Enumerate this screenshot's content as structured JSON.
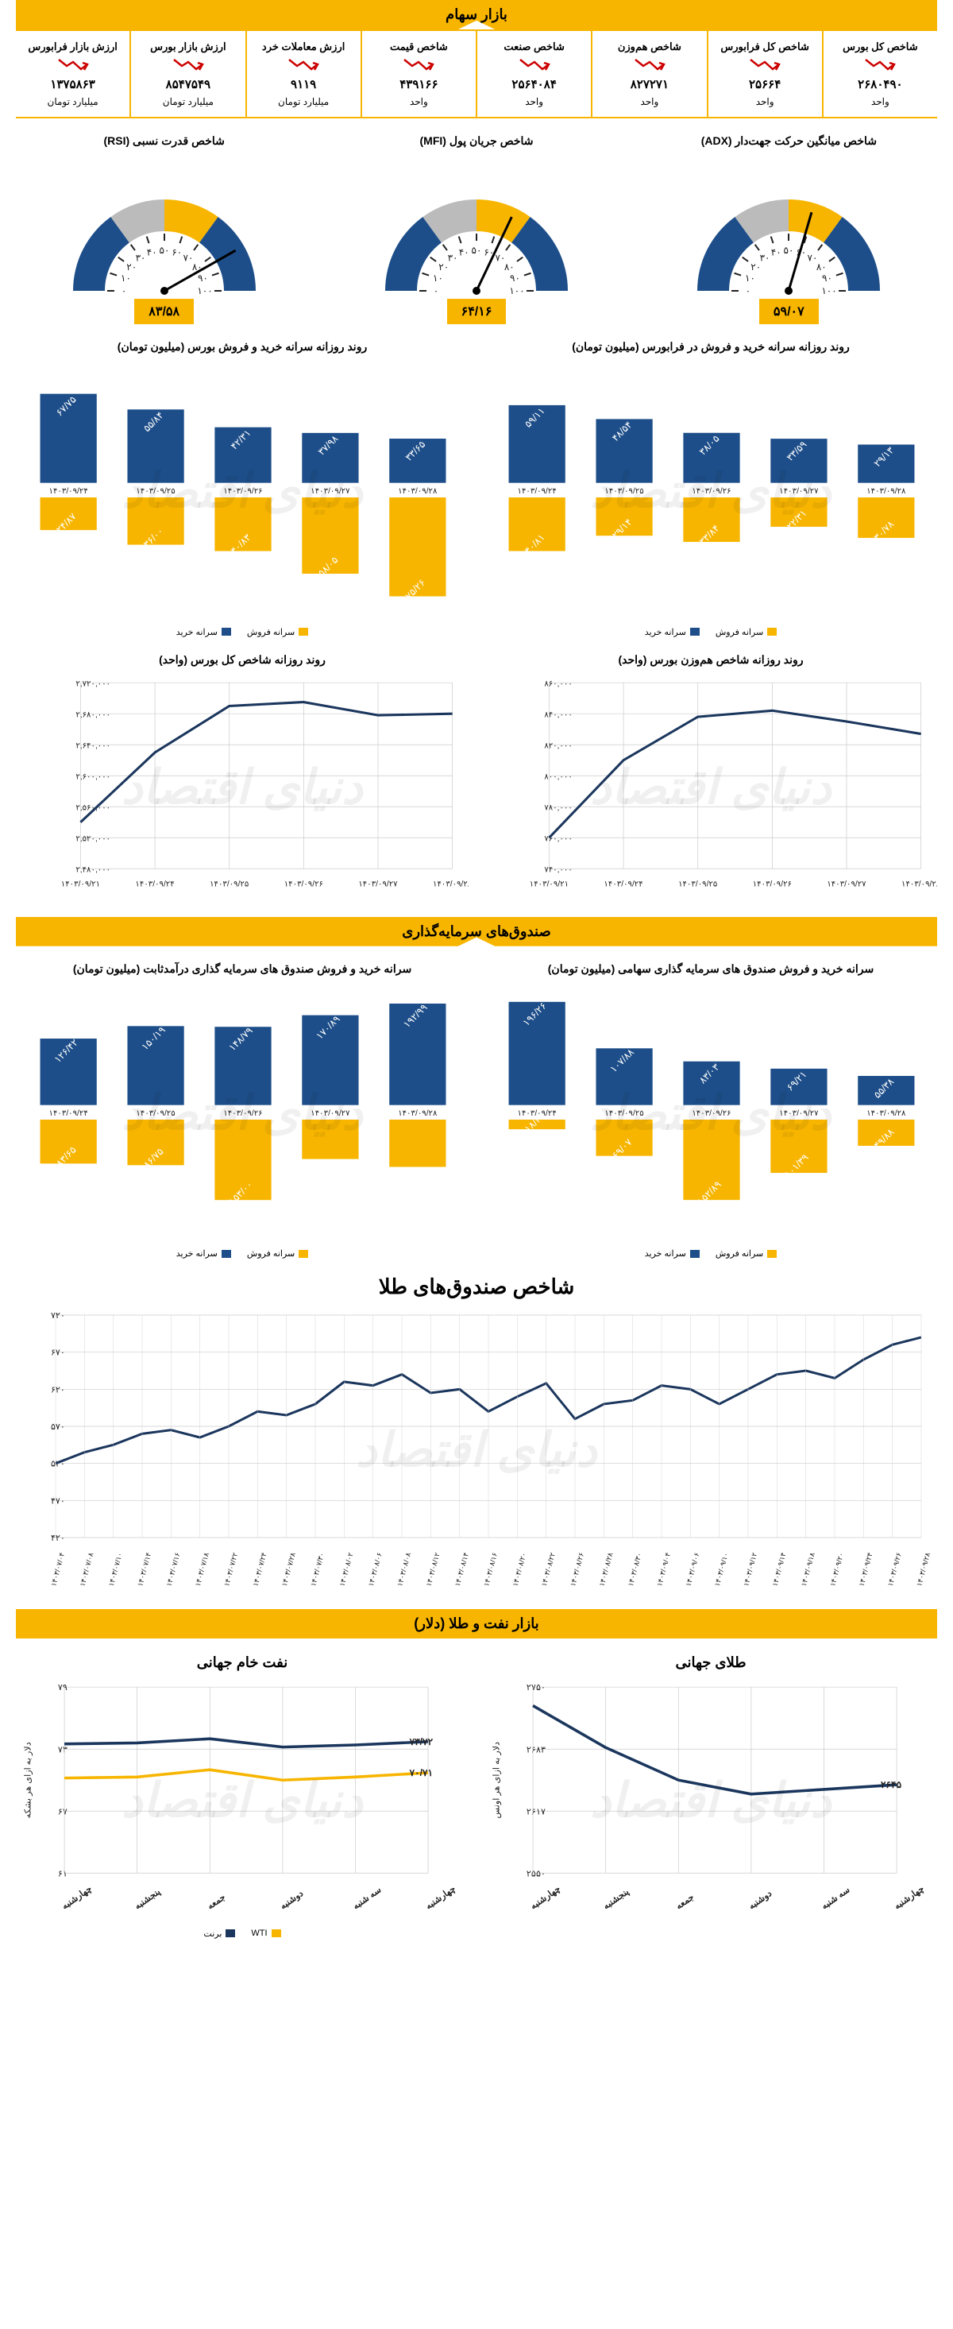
{
  "colors": {
    "yellow": "#f7b500",
    "blue": "#1d4e89",
    "navy": "#1b365d",
    "grid": "#cccccc",
    "text": "#222222"
  },
  "watermark": "دنیای اقتصاد",
  "section1": {
    "title": "بازار سهام",
    "metrics": [
      {
        "title": "شاخص کل بورس",
        "value": "۲۶۸۰۴۹۰",
        "unit": "واحد",
        "trend": "down"
      },
      {
        "title": "شاخص کل فرابورس",
        "value": "۲۵۶۶۴",
        "unit": "واحد",
        "trend": "down"
      },
      {
        "title": "شاخص هم‌وزن",
        "value": "۸۲۷۲۷۱",
        "unit": "واحد",
        "trend": "down"
      },
      {
        "title": "شاخص صنعت",
        "value": "۲۵۶۴۰۸۴",
        "unit": "واحد",
        "trend": "down"
      },
      {
        "title": "شاخص قیمت",
        "value": "۴۳۹۱۶۶",
        "unit": "واحد",
        "trend": "down"
      },
      {
        "title": "ارزش معاملات خرد",
        "value": "۹۱۱۹",
        "unit": "میلیارد تومان",
        "trend": "down"
      },
      {
        "title": "ارزش بازار بورس",
        "value": "۸۵۴۷۵۴۹",
        "unit": "میلیارد تومان",
        "trend": "down"
      },
      {
        "title": "ارزش بازار فرابورس",
        "value": "۱۳۷۵۸۶۳",
        "unit": "میلیارد تومان",
        "trend": "down"
      }
    ]
  },
  "gauges": [
    {
      "title": "شاخص میانگین حرکت جهت‌دار (ADX)",
      "value": 59.07,
      "label": "۵۹/۰۷"
    },
    {
      "title": "شاخص جریان پول (MFI)",
      "value": 64.16,
      "label": "۶۴/۱۶"
    },
    {
      "title": "شاخص قدرت نسبی (RSI)",
      "value": 83.58,
      "label": "۸۳/۵۸"
    }
  ],
  "gauge_ticks": [
    "۰",
    "۱۰",
    "۲۰",
    "۳۰",
    "۴۰",
    "۵۰",
    "۶۰",
    "۷۰",
    "۸۰",
    "۹۰",
    "۱۰۰"
  ],
  "bar_charts_row1": [
    {
      "title": "روند روزانه سرانه خرید و فروش در فرابورس (میلیون تومان)",
      "dates": [
        "۱۴۰۳/۰۹/۲۴",
        "۱۴۰۳/۰۹/۲۵",
        "۱۴۰۳/۰۹/۲۶",
        "۱۴۰۳/۰۹/۲۷",
        "۱۴۰۳/۰۹/۲۸"
      ],
      "buy": [
        59.11,
        48.54,
        38.05,
        33.59,
        29.13
      ],
      "sell": [
        40.81,
        29.14,
        33.84,
        22.31,
        30.78
      ],
      "buy_labels": [
        "۵۹/۱۱",
        "۴۸/۵۴",
        "۳۸/۰۵",
        "۳۳/۵۹",
        "۲۹/۱۳"
      ],
      "sell_labels": [
        "۴۰/۸۱",
        "۲۹/۱۴",
        "۳۳/۸۴",
        "۲۲/۳۱",
        "۳۰/۷۸"
      ]
    },
    {
      "title": "روند روزانه سرانه خرید و فروش بورس (میلیون تومان)",
      "dates": [
        "۱۴۰۳/۰۹/۲۴",
        "۱۴۰۳/۰۹/۲۵",
        "۱۴۰۳/۰۹/۲۶",
        "۱۴۰۳/۰۹/۲۷",
        "۱۴۰۳/۰۹/۲۸"
      ],
      "buy": [
        67.75,
        55.84,
        42.31,
        37.98,
        33.65
      ],
      "sell": [
        24.87,
        36.0,
        40.83,
        58.05,
        75.26
      ],
      "buy_labels": [
        "۶۷/۷۵",
        "۵۵/۸۴",
        "۴۲/۳۱",
        "۳۷/۹۸",
        "۳۳/۶۵"
      ],
      "sell_labels": [
        "۲۴/۸۷",
        "۳۶/۰۰",
        "۴۰/۸۳",
        "۵۸/۰۵",
        "۷۵/۲۶"
      ]
    }
  ],
  "legend_buy": "سرانه خرید",
  "legend_sell": "سرانه فروش",
  "line_charts_row1": [
    {
      "title": "روند روزانه شاخص هم‌وزن بورس (واحد)",
      "xlabels": [
        "۱۴۰۳/۰۹/۲۱",
        "۱۴۰۳/۰۹/۲۴",
        "۱۴۰۳/۰۹/۲۵",
        "۱۴۰۳/۰۹/۲۶",
        "۱۴۰۳/۰۹/۲۷",
        "۱۴۰۳/۰۹/۲۸"
      ],
      "ylabels": [
        "۷۴۰,۰۰۰",
        "۷۶۰,۰۰۰",
        "۷۸۰,۰۰۰",
        "۸۰۰,۰۰۰",
        "۸۲۰,۰۰۰",
        "۸۴۰,۰۰۰",
        "۸۶۰,۰۰۰"
      ],
      "ymin": 740000,
      "ymax": 860000,
      "values": [
        760000,
        810000,
        838000,
        842000,
        835000,
        827000
      ]
    },
    {
      "title": "روند روزانه شاخص کل بورس (واحد)",
      "xlabels": [
        "۱۴۰۳/۰۹/۲۱",
        "۱۴۰۳/۰۹/۲۴",
        "۱۴۰۳/۰۹/۲۵",
        "۱۴۰۳/۰۹/۲۶",
        "۱۴۰۳/۰۹/۲۷",
        "۱۴۰۳/۰۹/۲۸"
      ],
      "ylabels": [
        "۲,۴۸۰,۰۰۰",
        "۲,۵۲۰,۰۰۰",
        "۲,۵۶۰,۰۰۰",
        "۲,۶۰۰,۰۰۰",
        "۲,۶۴۰,۰۰۰",
        "۲,۶۸۰,۰۰۰",
        "۲,۷۲۰,۰۰۰"
      ],
      "ymin": 2480000,
      "ymax": 2720000,
      "values": [
        2540000,
        2630000,
        2690000,
        2695000,
        2678000,
        2680000
      ]
    }
  ],
  "section2": {
    "title": "صندوق‌های سرمایه‌گذاری"
  },
  "bar_charts_row2": [
    {
      "title": "سرانه خرید و فروش صندوق های سرمایه گذاری سهامی (میلیون تومان)",
      "dates": [
        "۱۴۰۳/۰۹/۲۴",
        "۱۴۰۳/۰۹/۲۵",
        "۱۴۰۳/۰۹/۲۶",
        "۱۴۰۳/۰۹/۲۷",
        "۱۴۰۳/۰۹/۲۸"
      ],
      "buy": [
        196.26,
        107.88,
        83.03,
        69.21,
        55.38
      ],
      "sell": [
        18.35,
        69.07,
        152.89,
        101.39,
        49.88
      ],
      "buy_labels": [
        "۱۹۶/۲۶",
        "۱۰۷/۸۸",
        "۸۳/۰۳",
        "۶۹/۲۱",
        "۵۵/۳۸"
      ],
      "sell_labels": [
        "۱۸/۳۵",
        "۶۹/۰۷",
        "۱۵۲/۸۹",
        "۱۰۱/۳۹",
        "۴۹/۸۸"
      ]
    },
    {
      "title": "سرانه خرید و فروش صندوق های سرمایه گذاری درآمدثابت (میلیون تومان)",
      "dates": [
        "۱۴۰۳/۰۹/۲۴",
        "۱۴۰۳/۰۹/۲۵",
        "۱۴۰۳/۰۹/۲۶",
        "۱۴۰۳/۰۹/۲۷",
        "۱۴۰۳/۰۹/۲۸"
      ],
      "buy": [
        126.42,
        150.19,
        148.79,
        170.89,
        192.99
      ],
      "sell": [
        83.65,
        86.75,
        153.0,
        75.0,
        90.0
      ],
      "buy_labels": [
        "۱۲۶/۴۲",
        "۱۵۰/۱۹",
        "۱۴۸/۷۹",
        "۱۷۰/۸۹",
        "۱۹۲/۹۹"
      ],
      "sell_labels": [
        "۸۳/۶۵",
        "۸۶/۷۵",
        "۱۵۳/۰۰",
        "",
        ""
      ]
    }
  ],
  "gold_chart": {
    "title": "شاخص صندوق‌های طلا",
    "ylabels": [
      "۴۲۰",
      "۴۷۰",
      "۵۲۰",
      "۵۷۰",
      "۶۲۰",
      "۶۷۰",
      "۷۲۰"
    ],
    "ymin": 420,
    "ymax": 720,
    "xlabels": [
      "۱۴۰۳/۰۷/۰۴",
      "۱۴۰۳/۰۷/۰۸",
      "۱۴۰۳/۰۷/۱۰",
      "۱۴۰۳/۰۷/۱۴",
      "۱۴۰۳/۰۷/۱۶",
      "۱۴۰۳/۰۷/۱۸",
      "۱۴۰۳/۰۷/۲۲",
      "۱۴۰۳/۰۷/۲۴",
      "۱۴۰۳/۰۷/۲۸",
      "۱۴۰۳/۰۷/۳۰",
      "۱۴۰۳/۰۸/۰۲",
      "۱۴۰۳/۰۸/۰۶",
      "۱۴۰۳/۰۸/۰۸",
      "۱۴۰۳/۰۸/۱۲",
      "۱۴۰۳/۰۸/۱۴",
      "۱۴۰۳/۰۸/۱۶",
      "۱۴۰۳/۰۸/۲۰",
      "۱۴۰۳/۰۸/۲۲",
      "۱۴۰۳/۰۸/۲۶",
      "۱۴۰۳/۰۸/۲۸",
      "۱۴۰۳/۰۸/۳۰",
      "۱۴۰۳/۰۹/۰۴",
      "۱۴۰۳/۰۹/۰۶",
      "۱۴۰۳/۰۹/۱۰",
      "۱۴۰۳/۰۹/۱۲",
      "۱۴۰۳/۰۹/۱۴",
      "۱۴۰۳/۰۹/۱۸",
      "۱۴۰۳/۰۹/۲۰",
      "۱۴۰۳/۰۹/۲۴",
      "۱۴۰۳/۰۹/۲۶",
      "۱۴۰۳/۰۹/۲۸"
    ],
    "values": [
      520,
      535,
      545,
      560,
      565,
      555,
      570,
      590,
      585,
      600,
      630,
      625,
      640,
      615,
      620,
      590,
      610,
      628,
      580,
      600,
      605,
      625,
      620,
      600,
      620,
      640,
      645,
      635,
      660,
      680,
      690
    ]
  },
  "section3": {
    "title": "بازار نفت و طلا (دلار)"
  },
  "commodity_charts": [
    {
      "title": "طلای جهانی",
      "ylabel": "دلار به ازای هر اونس",
      "ylabels": [
        "۲۵۵۰",
        "۲۶۱۷",
        "۲۶۸۳",
        "۲۷۵۰"
      ],
      "ymin": 2550,
      "ymax": 2750,
      "xlabels": [
        "چهارشنبه",
        "پنجشنبه",
        "جمعه",
        "دوشنبه",
        "سه شنبه",
        "چهارشنبه"
      ],
      "series": [
        {
          "name": "gold",
          "color": "#1b365d",
          "values": [
            2730,
            2685,
            2650,
            2635,
            2640,
            2645
          ],
          "last_label": "۲۶۴۵"
        }
      ]
    },
    {
      "title": "نفت خام جهانی",
      "ylabel": "دلار به ازای هر بشکه",
      "ylabels": [
        "۶۱",
        "۶۷",
        "۷۳",
        "۷۹"
      ],
      "ymin": 61,
      "ymax": 79,
      "xlabels": [
        "چهارشنبه",
        "پنجشنبه",
        "جمعه",
        "دوشنبه",
        "سه شنبه",
        "چهارشنبه"
      ],
      "series": [
        {
          "name": "برنت",
          "color": "#1b365d",
          "values": [
            73.5,
            73.6,
            74.0,
            73.2,
            73.4,
            73.72
          ],
          "last_label": "۷۳/۷۲"
        },
        {
          "name": "WTI",
          "color": "#f7b500",
          "values": [
            70.2,
            70.3,
            71.0,
            70.0,
            70.3,
            70.71
          ],
          "last_label": "۷۰/۷۱"
        }
      ],
      "legend": [
        "برنت",
        "WTI"
      ]
    }
  ]
}
